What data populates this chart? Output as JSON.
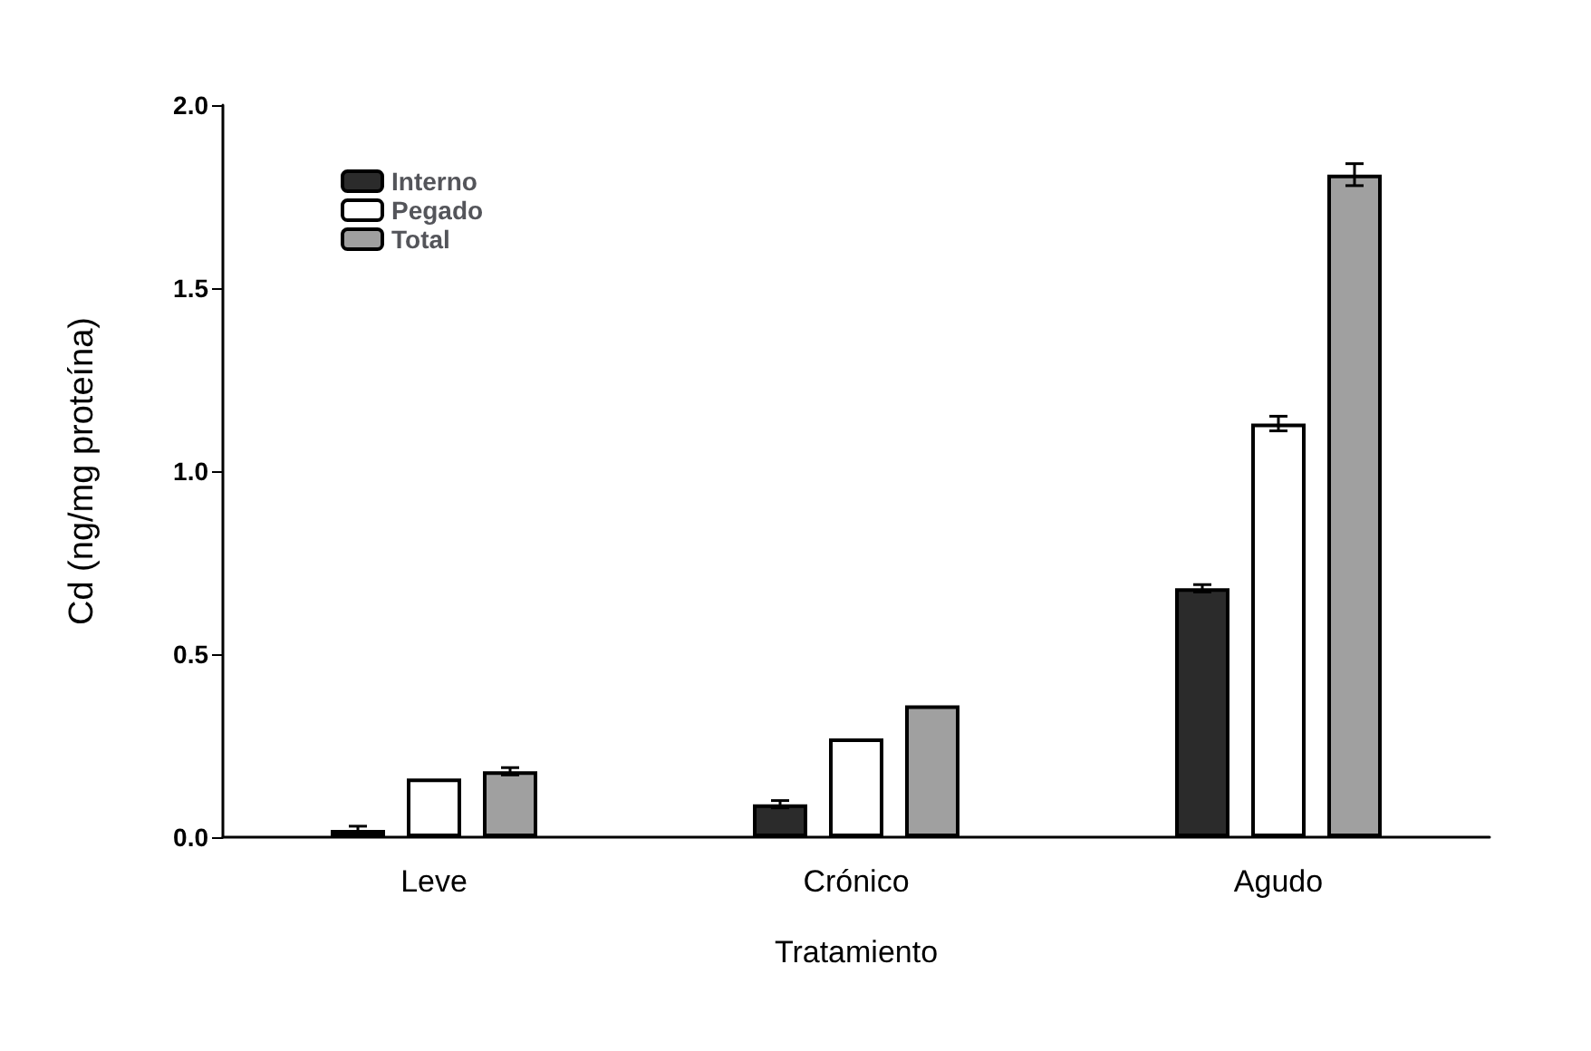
{
  "chart_data": {
    "type": "bar",
    "xlabel": "Tratamiento",
    "ylabel": "Cd (ng/mg proteína)",
    "categories": [
      "Leve",
      "Crónico",
      "Agudo"
    ],
    "series": [
      {
        "name": "Interno",
        "color": "#2b2b2b",
        "values": [
          0.02,
          0.09,
          0.68
        ],
        "errors": [
          0.01,
          0.01,
          0.01
        ]
      },
      {
        "name": "Pegado",
        "color": "#ffffff",
        "values": [
          0.16,
          0.27,
          1.13
        ],
        "errors": [
          null,
          null,
          0.02
        ]
      },
      {
        "name": "Total",
        "color": "#a0a0a0",
        "values": [
          0.18,
          0.36,
          1.81
        ],
        "errors": [
          0.01,
          null,
          0.03
        ]
      }
    ],
    "ylim": [
      0,
      2
    ],
    "yticks": [
      {
        "value": 0,
        "label": "0.0"
      },
      {
        "value": 0.5,
        "label": "0.5"
      },
      {
        "value": 1,
        "label": "1.0"
      },
      {
        "value": 1.5,
        "label": "1.5"
      },
      {
        "value": 2,
        "label": "2.0"
      }
    ],
    "grid": false,
    "legend": "top left"
  }
}
